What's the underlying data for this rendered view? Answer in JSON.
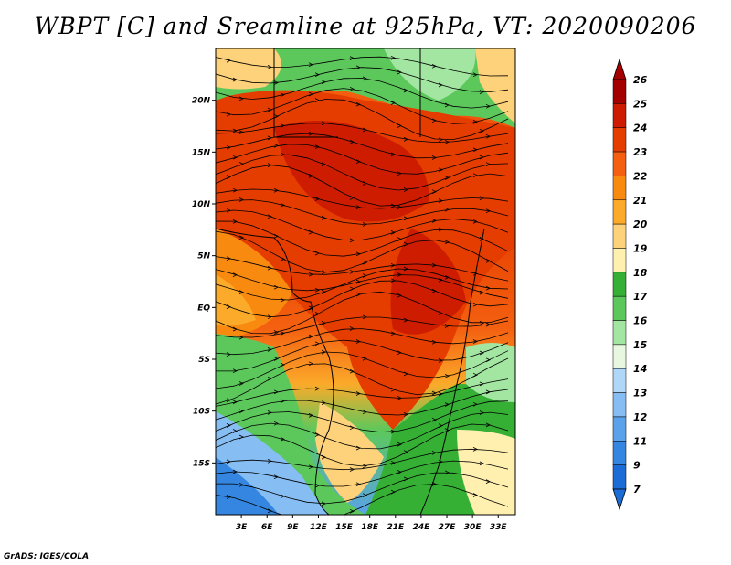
{
  "title": "WBPT [C] and Sreamline at 925hPa, VT: 2020090206",
  "credit": "GrADS: IGES/COLA",
  "map": {
    "x_ticks": [
      "3E",
      "6E",
      "9E",
      "12E",
      "15E",
      "18E",
      "21E",
      "24E",
      "27E",
      "30E",
      "33E"
    ],
    "y_ticks": [
      "20N",
      "15N",
      "10N",
      "5N",
      "EQ",
      "5S",
      "10S",
      "15S"
    ],
    "lon_range": [
      0,
      35
    ],
    "lat_range": [
      -20,
      25
    ],
    "x_tick_values": [
      3,
      6,
      9,
      12,
      15,
      18,
      21,
      24,
      27,
      30,
      33
    ],
    "y_tick_values": [
      20,
      15,
      10,
      5,
      0,
      -5,
      -10,
      -15
    ]
  },
  "colorbar": {
    "labels": [
      "26",
      "25",
      "24",
      "23",
      "22",
      "21",
      "20",
      "19",
      "18",
      "17",
      "16",
      "15",
      "14",
      "13",
      "12",
      "11",
      "9",
      "7"
    ],
    "colors": [
      "#a50000",
      "#cd1c00",
      "#e53c00",
      "#f46010",
      "#f98a10",
      "#fbaa2a",
      "#fdd27a",
      "#fff0b0",
      "#35b035",
      "#5cc85c",
      "#a2e6a2",
      "#e8f8e0",
      "#b0d6f8",
      "#86bdf2",
      "#5aa2ea",
      "#3486e0",
      "#1c6cd8"
    ],
    "top_arrow_color": "#a50000",
    "bottom_arrow_color": "#1c6cd8"
  },
  "colors": {
    "ocean_cold": "#3486e0",
    "warm_core": "#e53c00"
  }
}
